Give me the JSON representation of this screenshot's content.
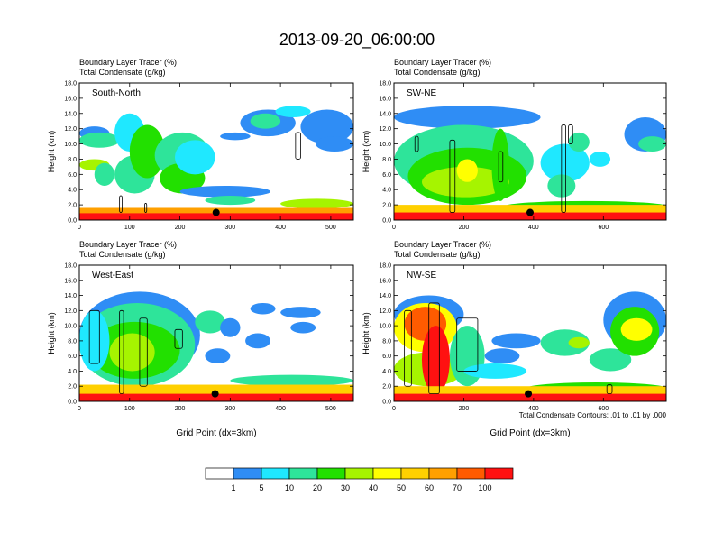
{
  "title": "2013-09-20_06:00:00",
  "colors": {
    "scale": [
      "#ffffff",
      "#2f8df5",
      "#1fe8ff",
      "#2ee49a",
      "#22e000",
      "#a6f400",
      "#ffff00",
      "#ffd000",
      "#ffa000",
      "#ff5b00",
      "#ff1111"
    ],
    "contour": "#000000",
    "marker": "#000000"
  },
  "legend": {
    "labels": [
      "1",
      "5",
      "10",
      "20",
      "30",
      "40",
      "50",
      "60",
      "70",
      "100"
    ]
  },
  "footnote": "Total Condensate Contours: .01 to .01 by .000",
  "chart_data": [
    {
      "type": "heatmap",
      "name": "South-North",
      "label": "South-North",
      "subtitle1": "Boundary Layer Tracer   (%)",
      "subtitle2": "Total Condensate   (g/kg)",
      "ylabel": "Height (km)",
      "xlabel": "",
      "xlim": [
        0,
        545
      ],
      "ylim": [
        0,
        18
      ],
      "xticks": [
        "0",
        "100",
        "200",
        "300",
        "400",
        "500"
      ],
      "xtickvals": [
        0,
        100,
        200,
        300,
        400,
        500
      ],
      "yticks": [
        "0.0",
        "2.0",
        "4.0",
        "6.0",
        "8.0",
        "10.0",
        "12.0",
        "14.0",
        "16.0",
        "18.0"
      ],
      "marker": [
        272,
        1.0
      ],
      "blobs": [
        [
          0,
          60,
          10.5,
          12.3,
          1
        ],
        [
          0,
          80,
          9.5,
          11.5,
          3
        ],
        [
          0,
          60,
          6.5,
          8,
          5
        ],
        [
          30,
          70,
          4.5,
          7.5,
          3
        ],
        [
          70,
          130,
          9.0,
          14.0,
          2
        ],
        [
          70,
          150,
          3.5,
          8.5,
          3
        ],
        [
          100,
          170,
          5.5,
          12.5,
          4
        ],
        [
          150,
          260,
          5.5,
          11.5,
          3
        ],
        [
          160,
          250,
          3.5,
          7.5,
          4
        ],
        [
          190,
          270,
          6.0,
          10.5,
          2
        ],
        [
          200,
          380,
          3.0,
          4.5,
          1
        ],
        [
          250,
          350,
          2.0,
          3.2,
          3
        ],
        [
          280,
          340,
          10.5,
          11.5,
          1
        ],
        [
          320,
          430,
          11.0,
          14.5,
          1
        ],
        [
          340,
          400,
          12.0,
          14.0,
          3
        ],
        [
          390,
          460,
          13.5,
          15.0,
          2
        ],
        [
          440,
          545,
          10.0,
          14.5,
          1
        ],
        [
          470,
          545,
          9.0,
          11.0,
          1
        ],
        [
          400,
          545,
          1.5,
          2.8,
          5
        ],
        [
          0,
          545,
          0.8,
          1.6,
          8
        ],
        [
          0,
          545,
          0,
          0.9,
          10
        ]
      ],
      "contours": [
        [
          430,
          8.0,
          440,
          11.5
        ],
        [
          80,
          1.0,
          85,
          3.2
        ],
        [
          130,
          1.0,
          134,
          2.2
        ]
      ]
    },
    {
      "type": "heatmap",
      "name": "SW-NE",
      "label": "SW-NE",
      "subtitle1": "Boundary Layer Tracer   (%)",
      "subtitle2": "Total Condensate   (g/kg)",
      "ylabel": "Height (km)",
      "xlabel": "",
      "xlim": [
        0,
        780
      ],
      "ylim": [
        0,
        18
      ],
      "xticks": [
        "0",
        "200",
        "400",
        "600"
      ],
      "xtickvals": [
        0,
        200,
        400,
        600
      ],
      "yticks": [
        "0.0",
        "2.0",
        "4.0",
        "6.0",
        "8.0",
        "10.0",
        "12.0",
        "14.0",
        "16.0",
        "18.0"
      ],
      "marker": [
        390,
        1.0
      ],
      "blobs": [
        [
          0,
          420,
          12.0,
          15.0,
          1
        ],
        [
          0,
          400,
          3.0,
          12.5,
          3
        ],
        [
          40,
          380,
          2.0,
          9.5,
          4
        ],
        [
          80,
          330,
          3.0,
          7.0,
          5
        ],
        [
          180,
          240,
          5.0,
          8.0,
          6
        ],
        [
          280,
          330,
          2.5,
          12.0,
          4
        ],
        [
          420,
          560,
          5.0,
          10.0,
          2
        ],
        [
          440,
          520,
          3.0,
          6.0,
          3
        ],
        [
          500,
          560,
          9.0,
          11.5,
          3
        ],
        [
          560,
          620,
          7.0,
          9.0,
          2
        ],
        [
          660,
          780,
          9.0,
          13.5,
          1
        ],
        [
          700,
          780,
          9.0,
          11.0,
          3
        ],
        [
          320,
          780,
          1.2,
          2.5,
          4
        ],
        [
          0,
          780,
          0.9,
          2.0,
          7
        ],
        [
          0,
          780,
          0,
          1.0,
          10
        ]
      ],
      "contours": [
        [
          60,
          9.0,
          70,
          11.0
        ],
        [
          160,
          1.0,
          175,
          10.5
        ],
        [
          300,
          5.0,
          312,
          9.0
        ],
        [
          480,
          1.0,
          492,
          12.5
        ],
        [
          500,
          10.0,
          512,
          12.5
        ]
      ]
    },
    {
      "type": "heatmap",
      "name": "West-East",
      "label": "West-East",
      "subtitle1": "Boundary Layer Tracer   (%)",
      "subtitle2": "Total Condensate   (g/kg)",
      "ylabel": "Height (km)",
      "xlabel": "Grid Point (dx=3km)",
      "xlim": [
        0,
        545
      ],
      "ylim": [
        0,
        18
      ],
      "xticks": [
        "0",
        "100",
        "200",
        "300",
        "400",
        "500"
      ],
      "xtickvals": [
        0,
        100,
        200,
        300,
        400,
        500
      ],
      "yticks": [
        "0.0",
        "2.0",
        "4.0",
        "6.0",
        "8.0",
        "10.0",
        "12.0",
        "14.0",
        "16.0",
        "18.0"
      ],
      "marker": [
        270,
        1.0
      ],
      "blobs": [
        [
          0,
          240,
          3.0,
          14.5,
          1
        ],
        [
          0,
          230,
          2.0,
          13.0,
          3
        ],
        [
          20,
          200,
          3.0,
          10.5,
          4
        ],
        [
          60,
          150,
          4.0,
          9.0,
          5
        ],
        [
          0,
          60,
          4.0,
          12.0,
          2
        ],
        [
          230,
          290,
          9.0,
          12.0,
          3
        ],
        [
          280,
          320,
          8.5,
          11.0,
          1
        ],
        [
          250,
          300,
          5.0,
          7.0,
          1
        ],
        [
          340,
          390,
          11.5,
          13.0,
          1
        ],
        [
          330,
          380,
          7.0,
          9.0,
          1
        ],
        [
          400,
          480,
          11.0,
          12.5,
          1
        ],
        [
          420,
          470,
          9.0,
          10.5,
          1
        ],
        [
          300,
          545,
          2.0,
          3.5,
          3
        ],
        [
          0,
          545,
          0.9,
          2.2,
          7
        ],
        [
          0,
          545,
          0,
          1.0,
          10
        ]
      ],
      "contours": [
        [
          20,
          5.0,
          40,
          12.0
        ],
        [
          120,
          2.0,
          135,
          11.0
        ],
        [
          190,
          7.0,
          205,
          9.5
        ],
        [
          80,
          1.0,
          88,
          12.0
        ]
      ]
    },
    {
      "type": "heatmap",
      "name": "NW-SE",
      "label": "NW-SE",
      "subtitle1": "Boundary Layer Tracer   (%)",
      "subtitle2": "Total Condensate   (g/kg)",
      "ylabel": "Height (km)",
      "xlabel": "Grid Point (dx=3km)",
      "xlim": [
        0,
        780
      ],
      "ylim": [
        0,
        18
      ],
      "xticks": [
        "0",
        "200",
        "400",
        "600"
      ],
      "xtickvals": [
        0,
        200,
        400,
        600
      ],
      "yticks": [
        "0.0",
        "2.0",
        "4.0",
        "6.0",
        "8.0",
        "10.0",
        "12.0",
        "14.0",
        "16.0",
        "18.0"
      ],
      "marker": [
        385,
        1.0
      ],
      "blobs": [
        [
          0,
          200,
          9.0,
          14.0,
          1
        ],
        [
          0,
          180,
          6.5,
          13.0,
          6
        ],
        [
          30,
          150,
          8.0,
          12.5,
          9
        ],
        [
          0,
          200,
          2.0,
          6.5,
          5
        ],
        [
          80,
          160,
          1.0,
          10.0,
          10
        ],
        [
          160,
          260,
          2.0,
          10.0,
          3
        ],
        [
          200,
          380,
          3.0,
          5.0,
          2
        ],
        [
          260,
          360,
          5.0,
          7.0,
          1
        ],
        [
          280,
          420,
          7.0,
          9.0,
          1
        ],
        [
          420,
          560,
          6.0,
          9.5,
          3
        ],
        [
          500,
          560,
          7.0,
          8.5,
          5
        ],
        [
          560,
          680,
          4.0,
          7.0,
          3
        ],
        [
          600,
          780,
          7.0,
          14.5,
          1
        ],
        [
          620,
          760,
          6.0,
          12.5,
          4
        ],
        [
          650,
          740,
          8.0,
          11.0,
          6
        ],
        [
          380,
          780,
          1.0,
          2.5,
          4
        ],
        [
          0,
          780,
          0.9,
          2.0,
          7
        ],
        [
          0,
          780,
          0,
          1.0,
          10
        ]
      ],
      "contours": [
        [
          30,
          2.0,
          50,
          12.0
        ],
        [
          100,
          1.0,
          130,
          13.0
        ],
        [
          180,
          4.0,
          240,
          11.0
        ],
        [
          610,
          1.0,
          625,
          2.2
        ]
      ]
    }
  ]
}
